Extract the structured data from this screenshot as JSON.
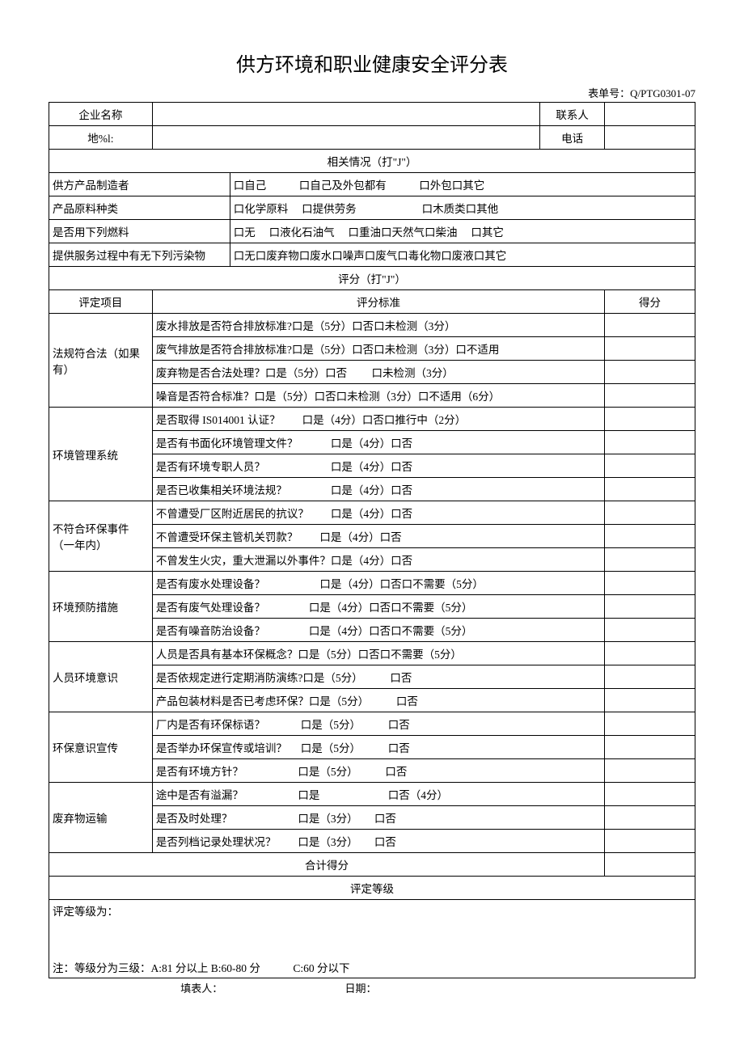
{
  "title": "供方环境和职业健康安全评分表",
  "form_no": "表单号：Q/PTG0301-07",
  "header": {
    "company_name_label": "企业名称",
    "contact_label": "联系人",
    "address_label": "地%l:",
    "phone_label": "电话"
  },
  "related": {
    "section_title": "相关情况（打\"J\"）",
    "row1_label": "供方产品制造者",
    "row1_opts": "口自己　　　口自己及外包都有　　　口外包口其它",
    "row2_label": "产品原料种类",
    "row2_opts": "口化学原料　 口提供劳务　　　　　　口木质类口其他",
    "row3_label": "是否用下列燃料",
    "row3_opts": "口无　 口液化石油气　 口重油口天然气口柴油　 口其它",
    "row4_label": "提供服务过程中有无下列污染物",
    "row4_opts": "口无口废弃物口废水口噪声口废气口毒化物口废液口其它"
  },
  "scoring": {
    "section_title": "评分（打\"J\"）",
    "col1": "评定项目",
    "col2": "评分标准",
    "col3": "得分"
  },
  "groups": [
    {
      "name": "法规符合法（如果有）",
      "items": [
        "废水排放是否符合排放标准?口是（5分）口否口未检测（3分）",
        "废气排放是否符合排放标准?口是（5分）口否口未检测（3分）口不适用",
        "废弃物是否合法处理？口是（5分）口否　　 口未检测（3分）",
        "噪音是否符合标准？口是（5分）口否口未检测（3分）口不适用（6分）"
      ]
    },
    {
      "name": "环境管理系统",
      "items": [
        "是否取得 IS014001 认证？　　口是（4分）口否口推行中（2分）",
        "是否有书面化环境管理文件？　　　口是（4分）口否",
        "是否有环境专职人员？　　　　　　口是（4分）口否",
        "是否已收集相关环境法规？　　　　口是（4分）口否"
      ]
    },
    {
      "name": "不符合环保事件（一年内）",
      "items": [
        "不曾遭受厂区附近居民的抗议？　　口是（4分）口否",
        "不曾遭受环保主管机关罚款？　　口是（4分）口否",
        "不曾发生火灾，重大泄漏以外事件？口是（4分）口否"
      ]
    },
    {
      "name": "环境预防措施",
      "items": [
        "是否有废水处理设备？　　　　　口是（4分）口否口不需要（5分）",
        "是否有废气处理设备？　　　　口是（4分）口否口不需要（5分）",
        "是否有噪音防治设备？　　　　口是（4分）口否口不需要（5分）"
      ]
    },
    {
      "name": "人员环境意识",
      "items": [
        "人员是否具有基本环保概念？口是（5分）口否口不需要（5分）",
        "是否依规定进行定期消防演练?口是（5分）　　　口否",
        "产品包装材料是否已考虑环保？口是（5分）　　　口否"
      ]
    },
    {
      "name": "环保意识宣传",
      "items": [
        "厂内是否有环保标语？　　　 口是（5分）　　　口否",
        "是否举办环保宣传或培训？　 口是（5分）　　　口否",
        "是否有环境方针？　　　　　口是（5分）　　　口否"
      ]
    },
    {
      "name": "废弃物运输",
      "items": [
        "途中是否有溢漏？　　　　　口是　　　　　　 口否（4分）",
        "是否及时处理？　　　　　　口是（3分）　　口否",
        "是否列档记录处理状况？　　口是（3分）　　口否"
      ]
    }
  ],
  "total_label": "合计得分",
  "grade_label": "评定等级",
  "grade_result_label": "评定等级为：",
  "note": "注：等级分为三级：A:81 分以上 B:60-80 分　　　C:60 分以下",
  "footer": {
    "filler": "填表人：",
    "date": "日期："
  }
}
